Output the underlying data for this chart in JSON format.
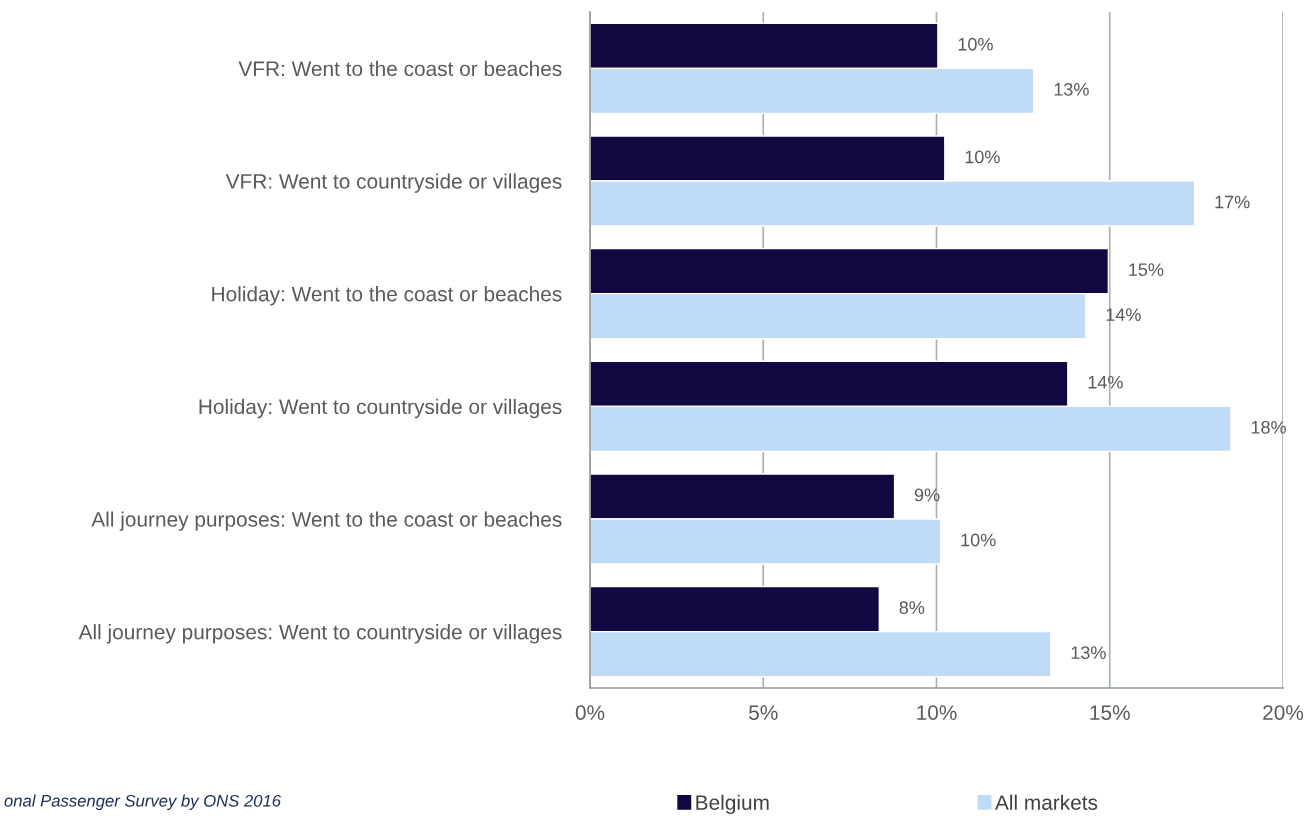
{
  "chart_data": {
    "type": "bar",
    "orientation": "horizontal",
    "categories": [
      "VFR: Went to the coast or beaches",
      "VFR: Went to countryside or villages",
      "Holiday: Went to the coast or beaches",
      "Holiday: Went to countryside or villages",
      "All journey purposes: Went to the coast or beaches",
      "All journey purposes: Went to countryside or villages"
    ],
    "series": [
      {
        "name": "Belgium",
        "color": "#130741",
        "values": [
          10.04,
          10.24,
          14.96,
          13.79,
          8.79,
          8.35
        ],
        "value_labels": [
          "10%",
          "10%",
          "15%",
          "14%",
          "9%",
          "8%"
        ]
      },
      {
        "name": "All markets",
        "color": "#c0dbf5",
        "values": [
          12.81,
          17.45,
          14.31,
          18.5,
          10.12,
          13.3
        ],
        "value_labels": [
          "13%",
          "17%",
          "14%",
          "18%",
          "10%",
          "13%"
        ]
      }
    ],
    "xlim": [
      0,
      20
    ],
    "xticks": [
      {
        "value": 0,
        "label": "0%"
      },
      {
        "value": 5,
        "label": "5%"
      },
      {
        "value": 10,
        "label": "10%"
      },
      {
        "value": 15,
        "label": "15%"
      },
      {
        "value": 20,
        "label": "20%"
      }
    ],
    "grid": "x",
    "legend": "bottom",
    "annotations": [
      "onal Passenger Survey by ONS 2016"
    ]
  }
}
